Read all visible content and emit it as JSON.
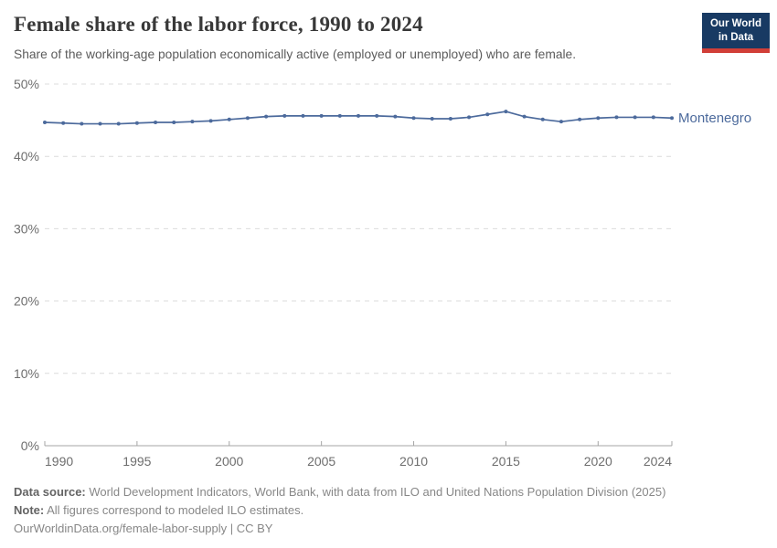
{
  "header": {
    "title": "Female share of the labor force, 1990 to 2024",
    "subtitle": "Share of the working-age population economically active (employed or unemployed) who are female.",
    "logo": {
      "line1": "Our World",
      "line2": "in Data"
    }
  },
  "colors": {
    "line": "#4c6a9c",
    "logo_bg": "#183a63",
    "logo_accent": "#d13f38",
    "gridline": "#dcdcdc",
    "axis": "#a5a5a5",
    "tick_label": "#6e6e6e"
  },
  "chart_data": {
    "type": "line",
    "title": "Female share of the labor force, 1990 to 2024",
    "xlabel": "",
    "ylabel": "",
    "ylim": [
      0,
      50
    ],
    "yticks": [
      0,
      10,
      20,
      30,
      40,
      50
    ],
    "ytick_labels": [
      "0%",
      "10%",
      "20%",
      "30%",
      "40%",
      "50%"
    ],
    "xticks": [
      1990,
      1995,
      2000,
      2005,
      2010,
      2015,
      2020,
      2024
    ],
    "grid": "horizontal-dashed",
    "legend_position": "end-of-line-label",
    "x": [
      1990,
      1991,
      1992,
      1993,
      1994,
      1995,
      1996,
      1997,
      1998,
      1999,
      2000,
      2001,
      2002,
      2003,
      2004,
      2005,
      2006,
      2007,
      2008,
      2009,
      2010,
      2011,
      2012,
      2013,
      2014,
      2015,
      2016,
      2017,
      2018,
      2019,
      2020,
      2021,
      2022,
      2023,
      2024
    ],
    "series": [
      {
        "name": "Montenegro",
        "color": "#4c6a9c",
        "values": [
          44.7,
          44.6,
          44.5,
          44.5,
          44.5,
          44.6,
          44.7,
          44.7,
          44.8,
          44.9,
          45.1,
          45.3,
          45.5,
          45.6,
          45.6,
          45.6,
          45.6,
          45.6,
          45.6,
          45.5,
          45.3,
          45.2,
          45.2,
          45.4,
          45.8,
          46.2,
          45.5,
          45.1,
          44.8,
          45.1,
          45.3,
          45.4,
          45.4,
          45.4,
          45.3
        ]
      }
    ]
  },
  "footer": {
    "data_source_label": "Data source:",
    "data_source": "World Development Indicators, World Bank, with data from ILO and United Nations Population Division (2025)",
    "note_label": "Note:",
    "note": "All figures correspond to modeled ILO estimates.",
    "attribution": "OurWorldinData.org/female-labor-supply | CC BY"
  }
}
